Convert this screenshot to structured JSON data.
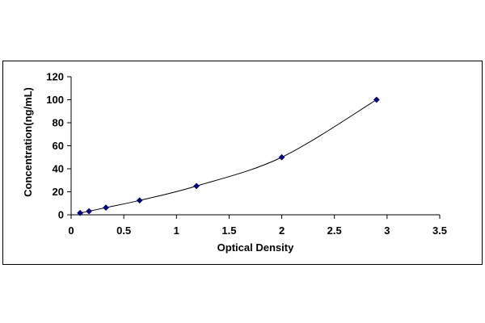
{
  "chart_data": {
    "type": "scatter",
    "title": "",
    "xlabel": "Optical Density",
    "ylabel": "Concentration(ng/mL)",
    "xlim": [
      0,
      3.5
    ],
    "ylim": [
      0,
      120
    ],
    "x_ticks": [
      "0",
      "0.5",
      "1",
      "1.5",
      "2",
      "2.5",
      "3",
      "3.5"
    ],
    "y_ticks": [
      "0",
      "20",
      "40",
      "60",
      "80",
      "100",
      "120"
    ],
    "grid": false,
    "legend": "none",
    "trendline": "smooth curve through points",
    "series": [
      {
        "x": [
          0.085,
          0.17,
          0.33,
          0.65,
          1.19,
          2.0,
          2.9
        ],
        "y": [
          1.56,
          3.12,
          6.25,
          12.5,
          25,
          50,
          100
        ],
        "color": "#000080"
      }
    ]
  }
}
